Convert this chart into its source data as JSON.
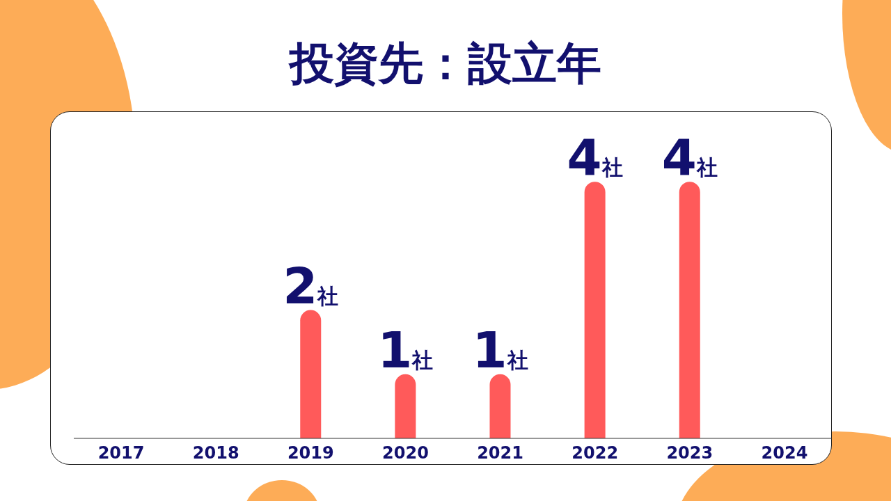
{
  "chart_data": {
    "type": "bar",
    "title": "投資先：設立年",
    "categories": [
      "2017",
      "2018",
      "2019",
      "2020",
      "2021",
      "2022",
      "2023",
      "2024"
    ],
    "values": [
      null,
      null,
      2,
      1,
      1,
      4,
      4,
      null
    ],
    "value_labels": [
      null,
      null,
      "2社",
      "1社",
      "1社",
      "4社",
      "4社",
      null
    ],
    "color": "#ff5a5a",
    "grid": false,
    "legend": false
  }
}
